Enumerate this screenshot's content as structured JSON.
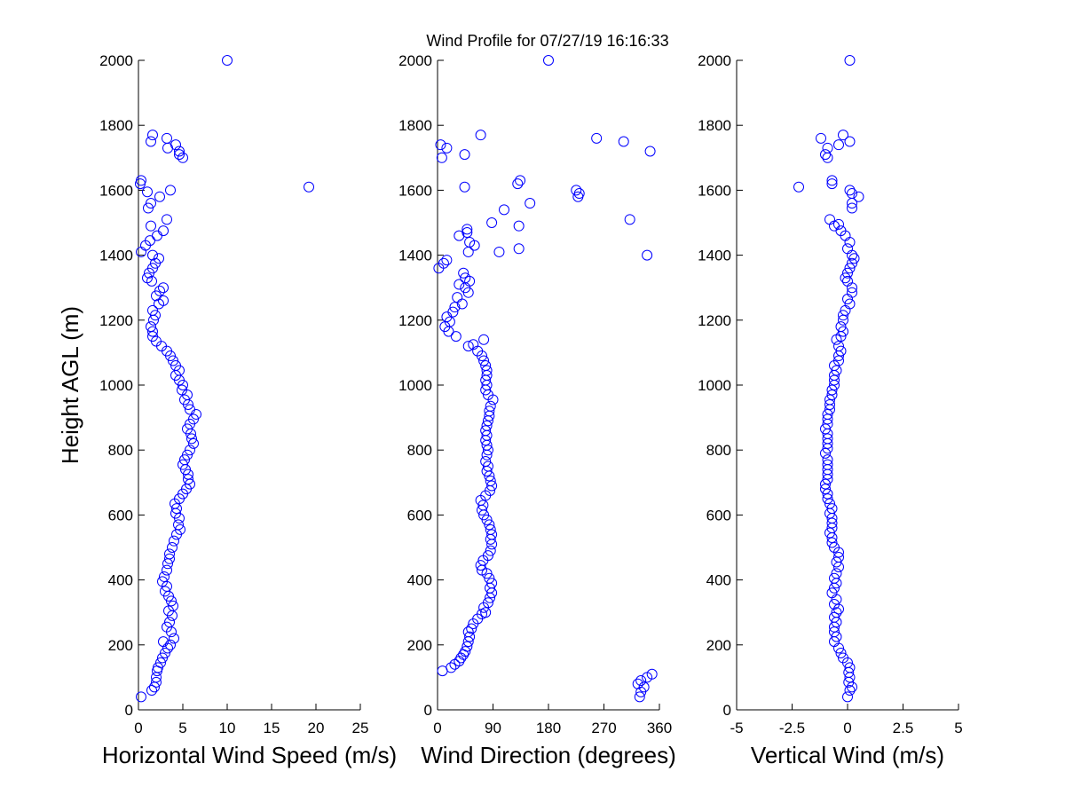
{
  "figure": {
    "title": "Wind Profile for  07/27/19 16:16:33",
    "ylabel": "Height AGL (m)",
    "marker_color": "#0000ff",
    "axis_color": "#000000"
  },
  "chart_data": [
    {
      "type": "scatter",
      "xlabel": "Horizontal Wind Speed (m/s)",
      "ylabel": "Height AGL (m)",
      "xlim": [
        0,
        25
      ],
      "ylim": [
        0,
        2000
      ],
      "xticks": [
        "0",
        "5",
        "10",
        "15",
        "20",
        "25"
      ],
      "yticks": [
        "0",
        "200",
        "400",
        "600",
        "800",
        "1000",
        "1200",
        "1400",
        "1600",
        "1800",
        "2000"
      ],
      "grid": false,
      "points": [
        [
          0.3,
          40
        ],
        [
          1.5,
          60
        ],
        [
          1.8,
          70
        ],
        [
          2.0,
          85
        ],
        [
          2.0,
          100
        ],
        [
          2.1,
          120
        ],
        [
          2.2,
          130
        ],
        [
          2.5,
          145
        ],
        [
          2.7,
          160
        ],
        [
          3.0,
          175
        ],
        [
          3.3,
          190
        ],
        [
          3.6,
          200
        ],
        [
          2.8,
          210
        ],
        [
          4.0,
          220
        ],
        [
          3.7,
          240
        ],
        [
          3.2,
          255
        ],
        [
          3.5,
          270
        ],
        [
          3.8,
          290
        ],
        [
          3.4,
          305
        ],
        [
          3.9,
          320
        ],
        [
          3.7,
          335
        ],
        [
          3.4,
          350
        ],
        [
          3.0,
          365
        ],
        [
          3.2,
          380
        ],
        [
          2.7,
          395
        ],
        [
          2.9,
          410
        ],
        [
          3.2,
          430
        ],
        [
          3.3,
          450
        ],
        [
          3.5,
          465
        ],
        [
          3.5,
          480
        ],
        [
          3.8,
          500
        ],
        [
          4.0,
          520
        ],
        [
          4.3,
          540
        ],
        [
          4.7,
          555
        ],
        [
          4.5,
          570
        ],
        [
          4.6,
          590
        ],
        [
          4.2,
          605
        ],
        [
          4.3,
          620
        ],
        [
          4.1,
          635
        ],
        [
          4.6,
          650
        ],
        [
          5.0,
          665
        ],
        [
          5.4,
          680
        ],
        [
          5.8,
          695
        ],
        [
          5.6,
          710
        ],
        [
          5.6,
          725
        ],
        [
          5.3,
          740
        ],
        [
          5.0,
          755
        ],
        [
          5.2,
          770
        ],
        [
          5.5,
          785
        ],
        [
          5.8,
          800
        ],
        [
          6.2,
          820
        ],
        [
          6.0,
          835
        ],
        [
          5.9,
          850
        ],
        [
          5.5,
          865
        ],
        [
          5.8,
          880
        ],
        [
          6.2,
          895
        ],
        [
          6.5,
          910
        ],
        [
          5.8,
          925
        ],
        [
          5.6,
          940
        ],
        [
          5.2,
          955
        ],
        [
          5.5,
          970
        ],
        [
          4.9,
          985
        ],
        [
          5.0,
          1000
        ],
        [
          4.6,
          1015
        ],
        [
          4.2,
          1030
        ],
        [
          4.6,
          1045
        ],
        [
          4.2,
          1060
        ],
        [
          3.9,
          1075
        ],
        [
          3.6,
          1090
        ],
        [
          3.2,
          1105
        ],
        [
          2.6,
          1120
        ],
        [
          2.0,
          1135
        ],
        [
          1.6,
          1150
        ],
        [
          1.6,
          1165
        ],
        [
          1.4,
          1180
        ],
        [
          1.7,
          1200
        ],
        [
          1.9,
          1215
        ],
        [
          1.6,
          1230
        ],
        [
          2.3,
          1250
        ],
        [
          2.8,
          1260
        ],
        [
          2.0,
          1275
        ],
        [
          2.4,
          1290
        ],
        [
          2.8,
          1300
        ],
        [
          1.5,
          1320
        ],
        [
          1.0,
          1330
        ],
        [
          1.2,
          1345
        ],
        [
          1.6,
          1360
        ],
        [
          1.9,
          1375
        ],
        [
          2.3,
          1390
        ],
        [
          1.6,
          1400
        ],
        [
          0.3,
          1410
        ],
        [
          0.8,
          1430
        ],
        [
          1.3,
          1445
        ],
        [
          2.1,
          1460
        ],
        [
          2.8,
          1475
        ],
        [
          1.4,
          1490
        ],
        [
          3.2,
          1510
        ],
        [
          1.1,
          1545
        ],
        [
          1.4,
          1560
        ],
        [
          2.4,
          1580
        ],
        [
          1.0,
          1595
        ],
        [
          3.6,
          1600
        ],
        [
          0.2,
          1620
        ],
        [
          0.3,
          1630
        ],
        [
          19.2,
          1610
        ],
        [
          5.0,
          1700
        ],
        [
          4.6,
          1710
        ],
        [
          4.6,
          1720
        ],
        [
          4.2,
          1740
        ],
        [
          3.3,
          1730
        ],
        [
          1.4,
          1750
        ],
        [
          3.2,
          1760
        ],
        [
          1.6,
          1770
        ],
        [
          10.0,
          2000
        ]
      ]
    },
    {
      "type": "scatter",
      "xlabel": "Wind Direction (degrees)",
      "ylabel": "",
      "xlim": [
        0,
        360
      ],
      "ylim": [
        0,
        2000
      ],
      "xticks": [
        "0",
        "90",
        "180",
        "270",
        "360"
      ],
      "yticks": [
        "0",
        "200",
        "400",
        "600",
        "800",
        "1000",
        "1200",
        "1400",
        "1600",
        "1800",
        "2000"
      ],
      "grid": false,
      "points": [
        [
          8,
          120
        ],
        [
          22,
          130
        ],
        [
          28,
          140
        ],
        [
          35,
          150
        ],
        [
          38,
          160
        ],
        [
          42,
          170
        ],
        [
          45,
          180
        ],
        [
          48,
          195
        ],
        [
          50,
          210
        ],
        [
          52,
          225
        ],
        [
          50,
          240
        ],
        [
          55,
          250
        ],
        [
          58,
          265
        ],
        [
          65,
          280
        ],
        [
          72,
          295
        ],
        [
          78,
          300
        ],
        [
          75,
          315
        ],
        [
          82,
          330
        ],
        [
          85,
          345
        ],
        [
          88,
          360
        ],
        [
          85,
          375
        ],
        [
          88,
          390
        ],
        [
          84,
          405
        ],
        [
          80,
          420
        ],
        [
          72,
          430
        ],
        [
          70,
          445
        ],
        [
          74,
          460
        ],
        [
          82,
          475
        ],
        [
          86,
          490
        ],
        [
          88,
          510
        ],
        [
          86,
          525
        ],
        [
          88,
          540
        ],
        [
          86,
          555
        ],
        [
          84,
          570
        ],
        [
          80,
          585
        ],
        [
          75,
          600
        ],
        [
          72,
          615
        ],
        [
          74,
          630
        ],
        [
          70,
          645
        ],
        [
          78,
          660
        ],
        [
          85,
          675
        ],
        [
          88,
          690
        ],
        [
          86,
          705
        ],
        [
          84,
          720
        ],
        [
          80,
          735
        ],
        [
          82,
          750
        ],
        [
          78,
          765
        ],
        [
          80,
          785
        ],
        [
          82,
          800
        ],
        [
          80,
          815
        ],
        [
          78,
          830
        ],
        [
          80,
          845
        ],
        [
          78,
          860
        ],
        [
          80,
          875
        ],
        [
          82,
          890
        ],
        [
          84,
          905
        ],
        [
          84,
          920
        ],
        [
          86,
          935
        ],
        [
          90,
          955
        ],
        [
          82,
          970
        ],
        [
          78,
          985
        ],
        [
          80,
          1000
        ],
        [
          78,
          1015
        ],
        [
          80,
          1030
        ],
        [
          80,
          1045
        ],
        [
          78,
          1060
        ],
        [
          75,
          1075
        ],
        [
          72,
          1090
        ],
        [
          65,
          1105
        ],
        [
          50,
          1120
        ],
        [
          58,
          1125
        ],
        [
          75,
          1140
        ],
        [
          30,
          1150
        ],
        [
          18,
          1165
        ],
        [
          12,
          1180
        ],
        [
          20,
          1195
        ],
        [
          15,
          1210
        ],
        [
          25,
          1225
        ],
        [
          28,
          1240
        ],
        [
          40,
          1250
        ],
        [
          32,
          1270
        ],
        [
          50,
          1285
        ],
        [
          45,
          1300
        ],
        [
          35,
          1310
        ],
        [
          52,
          1320
        ],
        [
          45,
          1330
        ],
        [
          42,
          1345
        ],
        [
          2,
          1360
        ],
        [
          10,
          1375
        ],
        [
          15,
          1385
        ],
        [
          50,
          1410
        ],
        [
          100,
          1410
        ],
        [
          132,
          1420
        ],
        [
          35,
          1460
        ],
        [
          48,
          1470
        ],
        [
          48,
          1480
        ],
        [
          60,
          1430
        ],
        [
          52,
          1440
        ],
        [
          88,
          1500
        ],
        [
          132,
          1490
        ],
        [
          108,
          1540
        ],
        [
          150,
          1560
        ],
        [
          130,
          1620
        ],
        [
          134,
          1630
        ],
        [
          44,
          1610
        ],
        [
          225,
          1600
        ],
        [
          230,
          1590
        ],
        [
          228,
          1580
        ],
        [
          312,
          1510
        ],
        [
          340,
          1400
        ],
        [
          7,
          1700
        ],
        [
          44,
          1710
        ],
        [
          15,
          1730
        ],
        [
          5,
          1740
        ],
        [
          70,
          1770
        ],
        [
          258,
          1760
        ],
        [
          302,
          1750
        ],
        [
          345,
          1720
        ],
        [
          180,
          2000
        ],
        [
          328,
          40
        ],
        [
          325,
          80
        ],
        [
          330,
          90
        ],
        [
          340,
          100
        ],
        [
          348,
          110
        ],
        [
          335,
          70
        ],
        [
          330,
          55
        ]
      ]
    },
    {
      "type": "scatter",
      "xlabel": "Vertical Wind (m/s)",
      "ylabel": "",
      "xlim": [
        -5,
        5
      ],
      "ylim": [
        0,
        2000
      ],
      "xticks": [
        "-5",
        "-2.5",
        "0",
        "2.5",
        "5"
      ],
      "yticks": [
        "0",
        "200",
        "400",
        "600",
        "800",
        "1000",
        "1200",
        "1400",
        "1600",
        "1800",
        "2000"
      ],
      "grid": false,
      "points": [
        [
          0.0,
          40
        ],
        [
          0.1,
          60
        ],
        [
          0.2,
          70
        ],
        [
          0.05,
          85
        ],
        [
          0.1,
          100
        ],
        [
          0.05,
          115
        ],
        [
          0.1,
          130
        ],
        [
          0.0,
          145
        ],
        [
          -0.2,
          160
        ],
        [
          -0.3,
          175
        ],
        [
          -0.4,
          190
        ],
        [
          -0.6,
          210
        ],
        [
          -0.5,
          225
        ],
        [
          -0.6,
          240
        ],
        [
          -0.6,
          255
        ],
        [
          -0.5,
          270
        ],
        [
          -0.6,
          285
        ],
        [
          -0.5,
          300
        ],
        [
          -0.4,
          310
        ],
        [
          -0.6,
          325
        ],
        [
          -0.5,
          340
        ],
        [
          -0.7,
          360
        ],
        [
          -0.6,
          375
        ],
        [
          -0.5,
          390
        ],
        [
          -0.6,
          405
        ],
        [
          -0.5,
          420
        ],
        [
          -0.4,
          440
        ],
        [
          -0.5,
          455
        ],
        [
          -0.4,
          470
        ],
        [
          -0.4,
          485
        ],
        [
          -0.6,
          500
        ],
        [
          -0.7,
          515
        ],
        [
          -0.7,
          530
        ],
        [
          -0.8,
          545
        ],
        [
          -0.7,
          560
        ],
        [
          -0.7,
          575
        ],
        [
          -0.7,
          590
        ],
        [
          -0.8,
          605
        ],
        [
          -0.7,
          620
        ],
        [
          -0.8,
          635
        ],
        [
          -0.9,
          650
        ],
        [
          -0.9,
          665
        ],
        [
          -1.0,
          680
        ],
        [
          -1.0,
          695
        ],
        [
          -0.9,
          710
        ],
        [
          -0.9,
          725
        ],
        [
          -0.9,
          740
        ],
        [
          -0.9,
          755
        ],
        [
          -0.9,
          770
        ],
        [
          -1.0,
          790
        ],
        [
          -0.9,
          805
        ],
        [
          -0.9,
          820
        ],
        [
          -0.9,
          835
        ],
        [
          -0.9,
          850
        ],
        [
          -1.0,
          865
        ],
        [
          -0.9,
          880
        ],
        [
          -0.9,
          895
        ],
        [
          -0.9,
          910
        ],
        [
          -0.8,
          925
        ],
        [
          -0.8,
          940
        ],
        [
          -0.8,
          955
        ],
        [
          -0.7,
          970
        ],
        [
          -0.7,
          985
        ],
        [
          -0.6,
          1000
        ],
        [
          -0.6,
          1015
        ],
        [
          -0.6,
          1030
        ],
        [
          -0.5,
          1045
        ],
        [
          -0.6,
          1060
        ],
        [
          -0.4,
          1075
        ],
        [
          -0.4,
          1090
        ],
        [
          -0.3,
          1105
        ],
        [
          -0.4,
          1120
        ],
        [
          -0.5,
          1140
        ],
        [
          -0.3,
          1150
        ],
        [
          -0.2,
          1165
        ],
        [
          -0.3,
          1180
        ],
        [
          -0.2,
          1200
        ],
        [
          -0.2,
          1215
        ],
        [
          -0.1,
          1230
        ],
        [
          0.1,
          1250
        ],
        [
          0.0,
          1265
        ],
        [
          0.2,
          1285
        ],
        [
          0.2,
          1300
        ],
        [
          0.0,
          1320
        ],
        [
          -0.1,
          1330
        ],
        [
          0.0,
          1345
        ],
        [
          0.1,
          1360
        ],
        [
          0.2,
          1375
        ],
        [
          0.3,
          1390
        ],
        [
          0.2,
          1400
        ],
        [
          0.0,
          1420
        ],
        [
          0.1,
          1440
        ],
        [
          -0.1,
          1460
        ],
        [
          -0.3,
          1475
        ],
        [
          -0.4,
          1495
        ],
        [
          -0.6,
          1490
        ],
        [
          -0.8,
          1510
        ],
        [
          0.2,
          1545
        ],
        [
          0.2,
          1560
        ],
        [
          0.5,
          1580
        ],
        [
          0.1,
          1600
        ],
        [
          0.2,
          1590
        ],
        [
          -0.7,
          1620
        ],
        [
          -0.7,
          1630
        ],
        [
          -2.2,
          1610
        ],
        [
          -0.9,
          1700
        ],
        [
          -1.0,
          1710
        ],
        [
          -0.9,
          1730
        ],
        [
          -0.4,
          1740
        ],
        [
          0.1,
          1750
        ],
        [
          -1.2,
          1760
        ],
        [
          -0.2,
          1770
        ],
        [
          0.1,
          2000
        ]
      ]
    }
  ]
}
